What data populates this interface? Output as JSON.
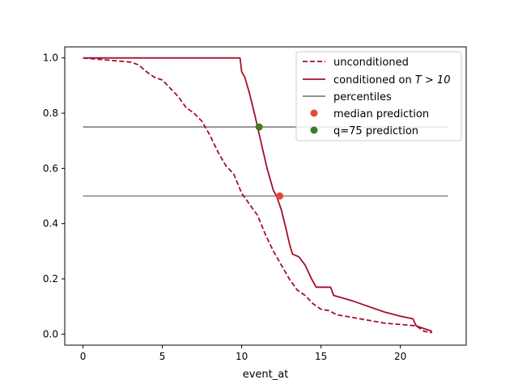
{
  "chart_data": {
    "type": "line",
    "title": "",
    "xlabel": "event_at",
    "ylabel": "",
    "xlim": [
      -1.15,
      24.15
    ],
    "ylim": [
      -0.04,
      1.04
    ],
    "xticks": [
      0,
      5,
      10,
      15,
      20
    ],
    "xtick_labels": [
      "0",
      "5",
      "10",
      "15",
      "20"
    ],
    "yticks": [
      0.0,
      0.2,
      0.4,
      0.6,
      0.8,
      1.0
    ],
    "ytick_labels": [
      "0.0",
      "0.2",
      "0.4",
      "0.6",
      "0.8",
      "1.0"
    ],
    "grid": false,
    "legend_position": "top-right",
    "legend": [
      {
        "label": "unconditioned",
        "kind": "dashed-line",
        "color": "#a50f2b"
      },
      {
        "label": "conditioned on T > 10",
        "label_prefix": "conditioned on ",
        "label_math": "T > 10",
        "kind": "line",
        "color": "#a50f2b"
      },
      {
        "label": "percentiles",
        "kind": "line",
        "color": "#808080"
      },
      {
        "label": "median prediction",
        "kind": "point",
        "color": "#e24a33"
      },
      {
        "label": "q=75 prediction",
        "kind": "point",
        "color": "#3a7d22"
      }
    ],
    "series": [
      {
        "name": "unconditioned",
        "style": "dashed",
        "color": "#a50f2b",
        "x": [
          0,
          1,
          2,
          3,
          3.5,
          4,
          4.5,
          5,
          5.5,
          6,
          6.5,
          7,
          7.5,
          8,
          8.5,
          9,
          9.5,
          10,
          10.5,
          11,
          11.5,
          12,
          12.5,
          13,
          13.5,
          14,
          14.5,
          15,
          15.5,
          16,
          17,
          18,
          19,
          20,
          21,
          21.5,
          22
        ],
        "y": [
          1.0,
          0.995,
          0.99,
          0.985,
          0.975,
          0.95,
          0.93,
          0.92,
          0.89,
          0.86,
          0.82,
          0.8,
          0.77,
          0.72,
          0.66,
          0.61,
          0.58,
          0.51,
          0.47,
          0.43,
          0.36,
          0.3,
          0.25,
          0.2,
          0.16,
          0.14,
          0.11,
          0.09,
          0.085,
          0.07,
          0.06,
          0.05,
          0.04,
          0.035,
          0.03,
          0.01,
          0.005
        ]
      },
      {
        "name": "conditioned on T > 10",
        "style": "solid",
        "color": "#a50f2b",
        "x": [
          0,
          9.9,
          10,
          10.2,
          10.5,
          10.8,
          11.0,
          11.2,
          11.4,
          11.6,
          11.8,
          12.0,
          12.2,
          12.5,
          12.8,
          13.0,
          13.2,
          13.6,
          14.0,
          14.4,
          14.7,
          15.0,
          15.6,
          15.8,
          17,
          18,
          19,
          20,
          20.8,
          21,
          22
        ],
        "y": [
          1.0,
          1.0,
          0.95,
          0.93,
          0.87,
          0.8,
          0.75,
          0.7,
          0.65,
          0.6,
          0.56,
          0.52,
          0.5,
          0.45,
          0.38,
          0.33,
          0.29,
          0.28,
          0.25,
          0.2,
          0.17,
          0.17,
          0.17,
          0.14,
          0.12,
          0.1,
          0.08,
          0.065,
          0.055,
          0.03,
          0.01
        ]
      }
    ],
    "percentile_lines": [
      {
        "name": "percentiles",
        "y": 0.75,
        "x_range": [
          0,
          23
        ],
        "color": "#808080"
      },
      {
        "name": "percentiles",
        "y": 0.5,
        "x_range": [
          0,
          23
        ],
        "color": "#808080"
      }
    ],
    "points": [
      {
        "name": "median prediction",
        "x": 12.4,
        "y": 0.5,
        "color": "#e24a33"
      },
      {
        "name": "q=75 prediction",
        "x": 11.1,
        "y": 0.75,
        "color": "#3a7d22"
      }
    ]
  }
}
